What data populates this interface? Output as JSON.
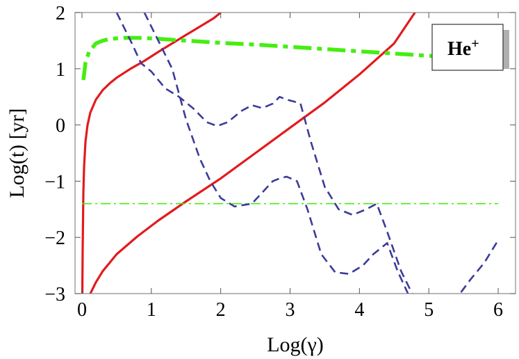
{
  "chart_data": {
    "type": "line",
    "xlabel": "Log(γ)",
    "ylabel": "Log(t)   [yr]",
    "xlim": [
      -0.1,
      6.25
    ],
    "ylim": [
      -3,
      2
    ],
    "x_ticks": [
      "0",
      "1",
      "2",
      "3",
      "4",
      "5",
      "6"
    ],
    "y_ticks": [
      "−3",
      "−2",
      "−1",
      "0",
      "1",
      "2"
    ],
    "legend": {
      "label": "He",
      "superscript": "+",
      "placement": "top-right"
    },
    "grid": false,
    "series": [
      {
        "style": "solid",
        "color": "#e31a1c",
        "x": [
          0.005,
          0.01,
          0.02,
          0.03,
          0.05,
          0.08,
          0.12,
          0.2,
          0.3,
          0.4,
          0.5,
          0.7,
          0.9,
          1.1,
          1.3,
          1.5,
          1.7,
          1.9,
          2.0
        ],
        "y": [
          -3.0,
          -2.2,
          -1.2,
          -0.75,
          -0.3,
          0.0,
          0.22,
          0.45,
          0.62,
          0.74,
          0.84,
          1.0,
          1.14,
          1.3,
          1.45,
          1.6,
          1.75,
          1.9,
          2.0
        ]
      },
      {
        "style": "solid",
        "color": "#e31a1c",
        "x": [
          0.12,
          0.2,
          0.3,
          0.5,
          0.8,
          1.1,
          1.5,
          2.0,
          2.5,
          3.0,
          3.5,
          4.0,
          4.5,
          4.8
        ],
        "y": [
          -3.0,
          -2.8,
          -2.6,
          -2.3,
          -1.98,
          -1.7,
          -1.36,
          -0.95,
          -0.5,
          -0.05,
          0.4,
          0.9,
          1.45,
          2.0
        ]
      },
      {
        "style": "dash-dot-thick",
        "color": "#44ee11",
        "x": [
          0.02,
          0.05,
          0.1,
          0.2,
          0.3,
          0.4,
          0.6,
          0.8,
          1.0,
          1.5,
          2.0,
          2.5,
          3.0,
          3.5,
          4.0,
          4.5,
          5.0,
          5.5,
          6.0
        ],
        "y": [
          0.8,
          1.1,
          1.3,
          1.45,
          1.5,
          1.53,
          1.55,
          1.55,
          1.54,
          1.5,
          1.46,
          1.43,
          1.39,
          1.35,
          1.31,
          1.27,
          1.23,
          1.2,
          1.17
        ]
      },
      {
        "style": "dash-dot-thin",
        "color": "#44ee11",
        "x": [
          0.0,
          6.0
        ],
        "y": [
          -1.4,
          -1.4
        ]
      },
      {
        "style": "dashed",
        "color": "#3b3b9a",
        "x": [
          0.5,
          0.7,
          0.85,
          1.0,
          1.2,
          1.4,
          1.6,
          1.8,
          1.95,
          2.1,
          2.3,
          2.45,
          2.6,
          2.75,
          2.85,
          2.95,
          3.05,
          3.15,
          3.3,
          3.5,
          3.7,
          3.9,
          4.1,
          4.25,
          4.4,
          4.6,
          4.8,
          5.0,
          5.2
        ],
        "y": [
          2.0,
          1.5,
          1.1,
          0.95,
          0.65,
          0.5,
          0.3,
          0.05,
          -0.02,
          0.05,
          0.25,
          0.35,
          0.3,
          0.38,
          0.5,
          0.45,
          0.42,
          0.38,
          -0.3,
          -1.1,
          -1.5,
          -1.6,
          -1.5,
          -1.4,
          -1.9,
          -2.6,
          -3.1,
          -3.5,
          -3.9
        ]
      },
      {
        "style": "dashed",
        "color": "#3b3b9a",
        "x": [
          0.9,
          1.1,
          1.3,
          1.5,
          1.7,
          1.85,
          2.0,
          2.2,
          2.45,
          2.6,
          2.75,
          2.85,
          2.95,
          3.1,
          3.25,
          3.45,
          3.65,
          3.85,
          4.05,
          4.2,
          4.3,
          4.4,
          4.55,
          4.7,
          4.9,
          5.1,
          5.3,
          5.45,
          5.6,
          5.8,
          6.0
        ],
        "y": [
          2.0,
          1.5,
          1.0,
          0.1,
          -0.6,
          -1.0,
          -1.3,
          -1.45,
          -1.4,
          -1.2,
          -1.0,
          -0.95,
          -0.92,
          -1.0,
          -1.5,
          -2.3,
          -2.62,
          -2.65,
          -2.5,
          -2.3,
          -2.2,
          -2.1,
          -2.6,
          -3.0,
          -3.3,
          -3.4,
          -3.15,
          -3.0,
          -2.75,
          -2.45,
          -2.05
        ]
      }
    ]
  }
}
